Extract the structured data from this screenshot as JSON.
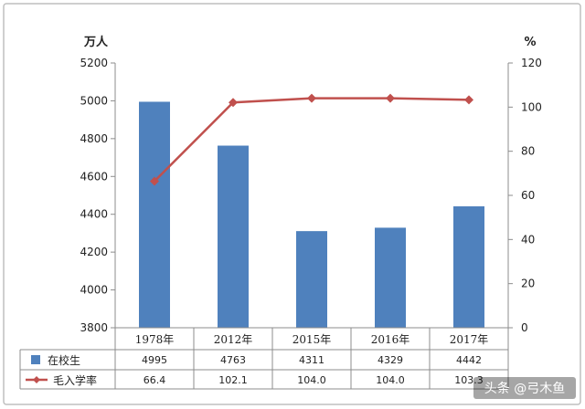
{
  "chart_data": {
    "type": "bar",
    "categories": [
      "1978年",
      "2012年",
      "2015年",
      "2016年",
      "2017年"
    ],
    "series": [
      {
        "name": "在校生",
        "type": "bar",
        "axis": "left",
        "values": [
          4995,
          4763,
          4311,
          4329,
          4442
        ],
        "color": "#4f81bd"
      },
      {
        "name": "毛入学率",
        "type": "line",
        "axis": "right",
        "values": [
          66.4,
          102.1,
          104.0,
          104.0,
          103.3
        ],
        "color": "#c0504d"
      }
    ],
    "table_labels": [
      [
        "4995",
        "4763",
        "4311",
        "4329",
        "4442"
      ],
      [
        "66.4",
        "102.1",
        "104.0",
        "104.0",
        "103.3"
      ]
    ],
    "y_left": {
      "label": "万人",
      "min": 3800,
      "max": 5200,
      "ticks": [
        3800,
        4000,
        4200,
        4400,
        4600,
        4800,
        5000,
        5200
      ]
    },
    "y_right": {
      "label": "%",
      "min": 0,
      "max": 120,
      "ticks": [
        0,
        20,
        40,
        60,
        80,
        100,
        120
      ]
    },
    "grid": false
  },
  "watermark": "头条 @弓木鱼"
}
